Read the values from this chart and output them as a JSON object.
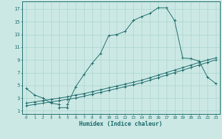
{
  "xlabel": "Humidex (Indice chaleur)",
  "bg_color": "#cce8e4",
  "line_color": "#1a6b6b",
  "grid_color": "#a8d4ce",
  "x_ticks": [
    0,
    1,
    2,
    3,
    4,
    5,
    6,
    7,
    8,
    9,
    10,
    11,
    12,
    13,
    14,
    15,
    16,
    17,
    18,
    19,
    20,
    21,
    22,
    23
  ],
  "y_ticks": [
    1,
    3,
    5,
    7,
    9,
    11,
    13,
    15,
    17
  ],
  "xlim": [
    -0.5,
    23.5
  ],
  "ylim": [
    0.5,
    18.2
  ],
  "series1_x": [
    0,
    1,
    2,
    3,
    4,
    4,
    5,
    5,
    6,
    7,
    8,
    9,
    10,
    11,
    12,
    13,
    14,
    15,
    16,
    17,
    18,
    19,
    20,
    21,
    22,
    23
  ],
  "series1_y": [
    4.5,
    3.5,
    3.0,
    2.2,
    2.0,
    1.5,
    1.5,
    2.0,
    4.8,
    6.7,
    8.5,
    10.0,
    12.8,
    13.0,
    13.5,
    15.2,
    15.8,
    16.3,
    17.2,
    17.2,
    15.2,
    9.3,
    9.2,
    8.8,
    6.3,
    5.3
  ],
  "series2_x": [
    0,
    1,
    2,
    3,
    4,
    5,
    6,
    7,
    8,
    9,
    10,
    11,
    12,
    13,
    14,
    15,
    16,
    17,
    18,
    19,
    20,
    21,
    22,
    23
  ],
  "series2_y": [
    1.8,
    2.0,
    2.2,
    2.4,
    2.6,
    2.8,
    3.0,
    3.3,
    3.6,
    3.9,
    4.2,
    4.5,
    4.8,
    5.1,
    5.4,
    5.8,
    6.2,
    6.6,
    7.0,
    7.4,
    7.8,
    8.2,
    8.6,
    9.0
  ],
  "series3_x": [
    0,
    1,
    2,
    3,
    4,
    5,
    6,
    7,
    8,
    9,
    10,
    11,
    12,
    13,
    14,
    15,
    16,
    17,
    18,
    19,
    20,
    21,
    22,
    23
  ],
  "series3_y": [
    2.2,
    2.4,
    2.6,
    2.8,
    3.0,
    3.2,
    3.5,
    3.7,
    4.0,
    4.3,
    4.6,
    4.9,
    5.2,
    5.5,
    5.8,
    6.2,
    6.6,
    7.0,
    7.4,
    7.8,
    8.2,
    8.6,
    9.0,
    9.3
  ]
}
